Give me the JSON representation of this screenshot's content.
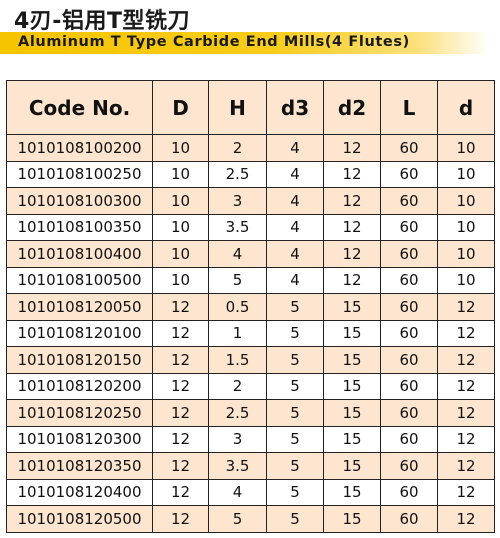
{
  "header": {
    "title_cn": "4刃-铝用T型铣刀",
    "title_en": "Aluminum T Type Carbide End Mills(4 Flutes)"
  },
  "table": {
    "columns": [
      "Code No.",
      "D",
      "H",
      "d3",
      "d2",
      "L",
      "d"
    ],
    "rows": [
      [
        "1010108100200",
        "10",
        "2",
        "4",
        "12",
        "60",
        "10"
      ],
      [
        "1010108100250",
        "10",
        "2.5",
        "4",
        "12",
        "60",
        "10"
      ],
      [
        "1010108100300",
        "10",
        "3",
        "4",
        "12",
        "60",
        "10"
      ],
      [
        "1010108100350",
        "10",
        "3.5",
        "4",
        "12",
        "60",
        "10"
      ],
      [
        "1010108100400",
        "10",
        "4",
        "4",
        "12",
        "60",
        "10"
      ],
      [
        "1010108100500",
        "10",
        "5",
        "4",
        "12",
        "60",
        "10"
      ],
      [
        "1010108120050",
        "12",
        "0.5",
        "5",
        "15",
        "60",
        "12"
      ],
      [
        "1010108120100",
        "12",
        "1",
        "5",
        "15",
        "60",
        "12"
      ],
      [
        "1010108120150",
        "12",
        "1.5",
        "5",
        "15",
        "60",
        "12"
      ],
      [
        "1010108120200",
        "12",
        "2",
        "5",
        "15",
        "60",
        "12"
      ],
      [
        "1010108120250",
        "12",
        "2.5",
        "5",
        "15",
        "60",
        "12"
      ],
      [
        "1010108120300",
        "12",
        "3",
        "5",
        "15",
        "60",
        "12"
      ],
      [
        "1010108120350",
        "12",
        "3.5",
        "5",
        "15",
        "60",
        "12"
      ],
      [
        "1010108120400",
        "12",
        "4",
        "5",
        "15",
        "60",
        "12"
      ],
      [
        "1010108120500",
        "12",
        "5",
        "5",
        "15",
        "60",
        "12"
      ]
    ]
  },
  "colors": {
    "accent_band": "#f6c400",
    "header_fill": "#fde5d0",
    "row_alt_fill": "#fde5d0"
  }
}
